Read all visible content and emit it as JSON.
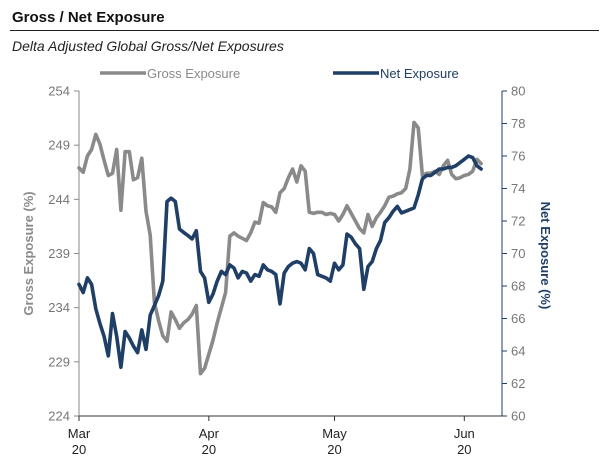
{
  "header": {
    "title": "Gross / Net Exposure",
    "subtitle": "Delta Adjusted Global Gross/Net Exposures"
  },
  "colors": {
    "gross": "#8a8a8a",
    "net": "#1f3f66"
  },
  "chart_data": {
    "type": "line",
    "title": "Gross / Net Exposure",
    "subtitle": "Delta Adjusted Global Gross/Net Exposures",
    "ylabel": "Gross Exposure (%)",
    "y2label": "Net Exposure (%)",
    "ylim": [
      224,
      254
    ],
    "yticks": [
      224,
      229,
      234,
      239,
      244,
      249,
      254
    ],
    "y2lim": [
      60,
      80
    ],
    "y2ticks": [
      60,
      62,
      64,
      66,
      68,
      70,
      72,
      74,
      76,
      78,
      80
    ],
    "xlim": [
      0,
      101
    ],
    "xticks": [
      {
        "x": 0,
        "line1": "Mar",
        "line2": "20"
      },
      {
        "x": 31,
        "line1": "Apr",
        "line2": "20"
      },
      {
        "x": 61,
        "line1": "May",
        "line2": "20"
      },
      {
        "x": 92,
        "line1": "Jun",
        "line2": "20"
      }
    ],
    "legend": "top",
    "series": [
      {
        "name": "Gross Exposure",
        "axis": "left",
        "x": [
          0,
          1,
          2,
          3,
          4,
          5,
          6,
          7,
          8,
          9,
          10,
          11,
          12,
          13,
          14,
          15,
          16,
          17,
          18,
          19,
          20,
          21,
          22,
          23,
          24,
          25,
          26,
          27,
          28,
          29,
          30,
          31,
          32,
          33,
          34,
          35,
          36,
          37,
          38,
          39,
          40,
          41,
          42,
          43,
          44,
          45,
          46,
          47,
          48,
          49,
          50,
          51,
          52,
          53,
          54,
          55,
          56,
          57,
          58,
          59,
          60,
          61,
          62,
          63,
          64,
          65,
          66,
          67,
          68,
          69,
          70,
          71,
          72,
          73,
          74,
          75,
          76,
          77,
          78,
          79,
          80,
          81,
          82,
          83,
          84,
          85,
          86,
          87,
          88,
          89,
          90,
          91,
          92,
          93,
          94,
          95,
          96
        ],
        "values": [
          246.9,
          246.5,
          248.0,
          248.6,
          250.0,
          249.1,
          247.6,
          246.2,
          246.4,
          248.6,
          243.0,
          248.4,
          248.4,
          245.8,
          246.0,
          247.8,
          242.9,
          240.7,
          234.5,
          232.8,
          231.4,
          230.9,
          233.6,
          232.9,
          232.1,
          232.6,
          232.9,
          233.4,
          234.2,
          227.9,
          228.4,
          229.7,
          231.0,
          232.6,
          234.0,
          235.4,
          240.6,
          240.9,
          240.6,
          240.4,
          240.2,
          240.9,
          241.9,
          241.8,
          243.7,
          243.4,
          243.3,
          242.8,
          244.6,
          245.0,
          246.0,
          246.8,
          245.6,
          247.1,
          246.6,
          242.8,
          242.7,
          242.8,
          242.8,
          242.6,
          242.7,
          242.6,
          242.0,
          242.6,
          243.4,
          242.7,
          242.0,
          241.3,
          240.9,
          242.6,
          241.5,
          242.3,
          242.8,
          243.4,
          244.2,
          244.3,
          244.5,
          244.6,
          245.0,
          246.8,
          251.1,
          250.6,
          246.2,
          246.4,
          246.4,
          246.6,
          246.3,
          247.1,
          247.6,
          246.3,
          245.9,
          246.0,
          246.2,
          246.3,
          246.6,
          247.7,
          247.3
        ]
      },
      {
        "name": "Net Exposure",
        "axis": "right",
        "x": [
          0,
          1,
          2,
          3,
          4,
          5,
          6,
          7,
          8,
          9,
          10,
          11,
          12,
          13,
          14,
          15,
          16,
          17,
          18,
          19,
          20,
          21,
          22,
          23,
          24,
          25,
          26,
          27,
          28,
          29,
          30,
          31,
          32,
          33,
          34,
          35,
          36,
          37,
          38,
          39,
          40,
          41,
          42,
          43,
          44,
          45,
          46,
          47,
          48,
          49,
          50,
          51,
          52,
          53,
          54,
          55,
          56,
          57,
          58,
          59,
          60,
          61,
          62,
          63,
          64,
          65,
          66,
          67,
          68,
          69,
          70,
          71,
          72,
          73,
          74,
          75,
          76,
          77,
          78,
          79,
          80,
          81,
          82,
          83,
          84,
          85,
          86,
          87,
          88,
          89,
          90,
          91,
          92,
          93,
          94,
          95,
          96
        ],
        "values": [
          68.1,
          67.6,
          68.5,
          68.1,
          66.6,
          65.7,
          64.9,
          63.7,
          66.3,
          64.9,
          63.0,
          65.2,
          64.8,
          64.3,
          63.9,
          65.3,
          64.1,
          66.2,
          66.8,
          67.4,
          68.3,
          73.2,
          73.4,
          73.2,
          71.5,
          71.3,
          71.1,
          70.9,
          71.4,
          68.9,
          68.5,
          67.0,
          67.5,
          68.3,
          68.9,
          68.7,
          69.3,
          69.1,
          68.5,
          68.9,
          68.8,
          68.3,
          68.7,
          68.6,
          69.3,
          69.0,
          68.9,
          68.7,
          66.9,
          68.8,
          69.2,
          69.4,
          69.5,
          69.4,
          69.0,
          70.3,
          70.0,
          68.7,
          68.6,
          68.5,
          68.3,
          69.4,
          69.0,
          69.3,
          71.2,
          71.0,
          70.6,
          70.3,
          67.8,
          69.2,
          69.5,
          70.3,
          70.8,
          71.9,
          72.2,
          72.6,
          72.9,
          72.5,
          72.6,
          72.7,
          72.8,
          73.6,
          74.6,
          74.8,
          74.8,
          75.0,
          75.2,
          75.2,
          75.3,
          75.3,
          75.4,
          75.6,
          75.8,
          76.0,
          75.9,
          75.4,
          75.2
        ]
      }
    ]
  }
}
